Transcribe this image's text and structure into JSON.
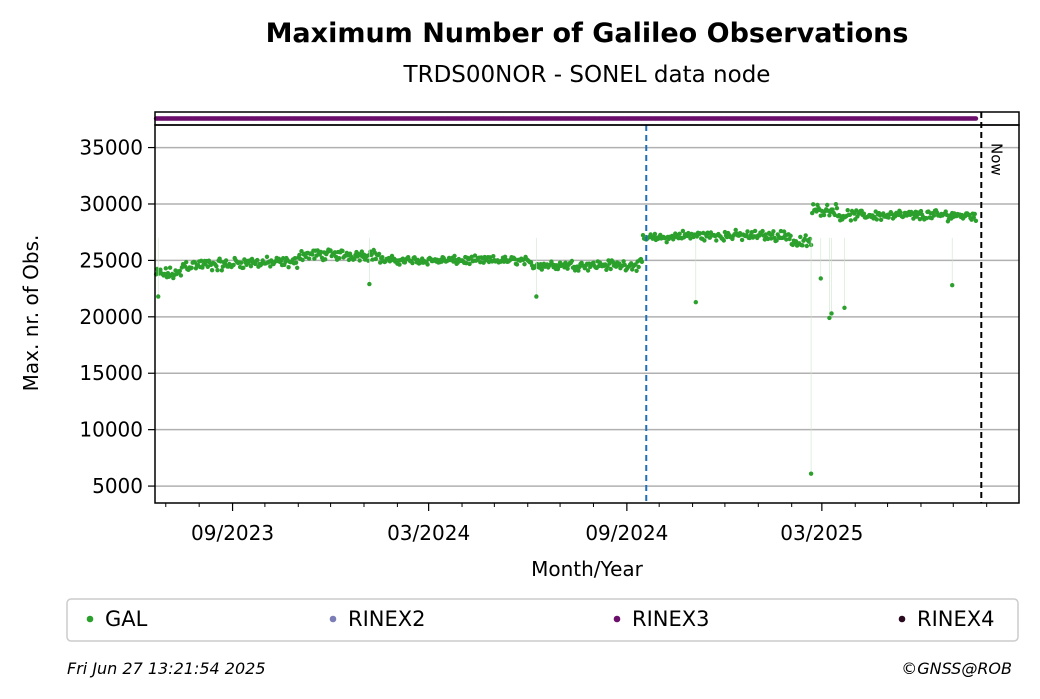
{
  "chart_data": {
    "type": "scatter",
    "title": "Maximum Number of Galileo Observations",
    "subtitle": "TRDS00NOR - SONEL data node",
    "xlabel": "Month/Year",
    "ylabel": "Max. nr. of Obs.",
    "x_tick_labels": [
      "09/2023",
      "03/2024",
      "09/2024",
      "03/2025"
    ],
    "y_ticks": [
      5000,
      10000,
      15000,
      20000,
      25000,
      30000,
      35000
    ],
    "ylim": [
      3500,
      37000
    ],
    "xlim": [
      "2023-06-21",
      "2025-08-31"
    ],
    "grid": "horizontal",
    "now_label": "Now",
    "now_date": "2025-07-27",
    "format_change_date": "2024-09-19",
    "series": [
      {
        "name": "GAL",
        "color": "#2ca02c",
        "daily_segments": [
          {
            "start": "2023-06-22",
            "end": "2023-07-15",
            "level": 23800,
            "jitter": 700
          },
          {
            "start": "2023-07-16",
            "end": "2023-08-31",
            "level": 24600,
            "jitter": 700
          },
          {
            "start": "2023-09-01",
            "end": "2023-10-31",
            "level": 24800,
            "jitter": 600
          },
          {
            "start": "2023-11-01",
            "end": "2024-01-15",
            "level": 25500,
            "jitter": 600
          },
          {
            "start": "2024-01-16",
            "end": "2024-05-31",
            "level": 25000,
            "jitter": 450
          },
          {
            "start": "2024-06-01",
            "end": "2024-09-15",
            "level": 24600,
            "jitter": 550
          },
          {
            "start": "2024-09-16",
            "end": "2024-10-15",
            "level": 27000,
            "jitter": 450
          },
          {
            "start": "2024-10-16",
            "end": "2025-01-31",
            "level": 27200,
            "jitter": 550
          },
          {
            "start": "2025-02-01",
            "end": "2025-02-19",
            "level": 26600,
            "jitter": 800
          },
          {
            "start": "2025-02-20",
            "end": "2025-03-15",
            "level": 29500,
            "jitter": 600
          },
          {
            "start": "2025-03-16",
            "end": "2025-07-22",
            "level": 29000,
            "jitter": 550
          }
        ],
        "outliers": [
          {
            "x": "2023-06-24",
            "y": 21800
          },
          {
            "x": "2024-01-06",
            "y": 22900
          },
          {
            "x": "2024-06-09",
            "y": 21800
          },
          {
            "x": "2024-11-04",
            "y": 21300
          },
          {
            "x": "2025-02-19",
            "y": 6100
          },
          {
            "x": "2025-02-28",
            "y": 23400
          },
          {
            "x": "2025-03-08",
            "y": 19900
          },
          {
            "x": "2025-03-10",
            "y": 20300
          },
          {
            "x": "2025-03-22",
            "y": 20800
          },
          {
            "x": "2025-06-30",
            "y": 22800
          }
        ]
      },
      {
        "name": "RINEX2",
        "color": "#7b7eb6"
      },
      {
        "name": "RINEX3",
        "color": "#6b0f6b",
        "daily_start": "2023-06-22",
        "daily_end": "2025-07-22"
      },
      {
        "name": "RINEX4",
        "color": "#2a0a1f"
      }
    ]
  },
  "footer": {
    "timestamp": "Fri Jun 27 13:21:54 2025",
    "credit": "©GNSS@ROB"
  }
}
